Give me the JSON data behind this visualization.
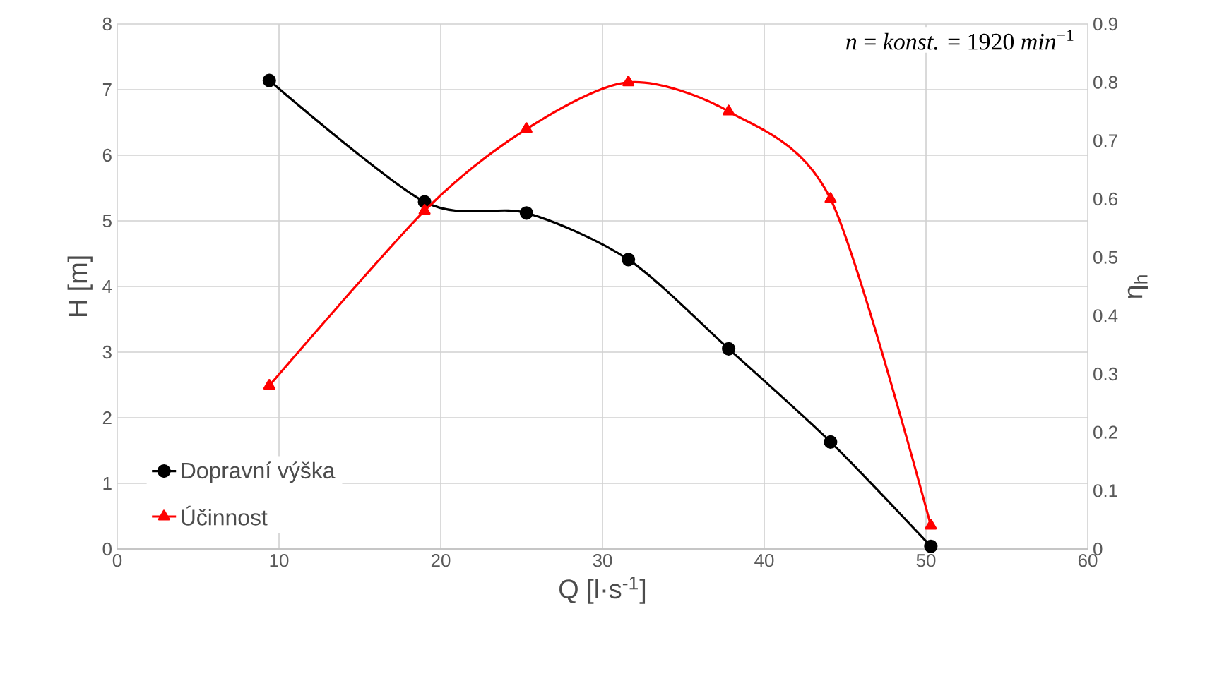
{
  "chart_data": {
    "type": "line",
    "xlabel": "Q [l·s$^{-1}$]",
    "ylabel": "H [m]",
    "y2label": "η$_{h}$",
    "annotations": [
      "*n* = *konst.* = 1920 *min*$^{−1}$"
    ],
    "xlim": [
      0,
      60
    ],
    "xticks": [
      0,
      10,
      20,
      30,
      40,
      50,
      60
    ],
    "ylim": [
      0,
      8
    ],
    "yticks": [
      0,
      1,
      2,
      3,
      4,
      5,
      6,
      7,
      8
    ],
    "y2lim": [
      0,
      0.9
    ],
    "y2ticks": [
      0,
      0.1,
      0.2,
      0.3,
      0.4,
      0.5,
      0.6,
      0.7,
      0.8,
      0.9
    ],
    "grid": true,
    "legend": "bottom left",
    "series": [
      {
        "name": "Dopravní výška",
        "color": "#000000",
        "marker": "circle",
        "x": [
          9.4,
          19.0,
          25.3,
          31.6,
          37.8,
          44.1,
          50.3
        ],
        "values": [
          7.14,
          5.29,
          5.12,
          4.41,
          3.05,
          1.63,
          0.04
        ]
      },
      {
        "name": "Účinnost",
        "color": "#ff0000",
        "marker": "triangle",
        "axis": "y2",
        "x": [
          9.4,
          19.0,
          25.3,
          31.6,
          37.8,
          44.1,
          50.3
        ],
        "values": [
          0.28,
          0.58,
          0.72,
          0.8,
          0.75,
          0.6,
          0.04
        ]
      }
    ]
  }
}
